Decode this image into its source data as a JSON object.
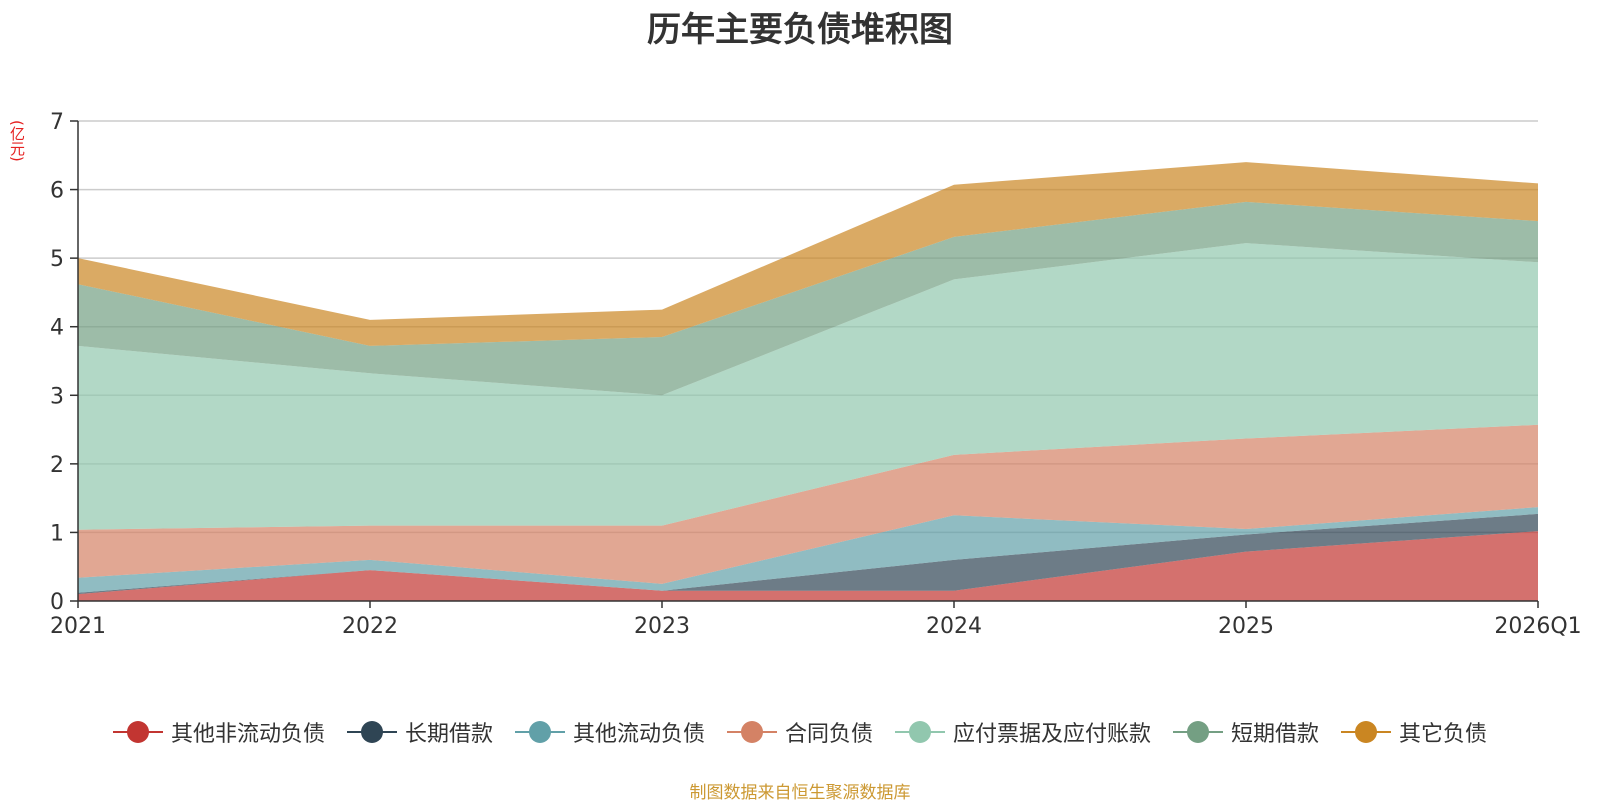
{
  "chart_data": {
    "type": "area",
    "title": "历年主要负债堆积图",
    "ylabel": "(亿元)",
    "xlabel": "",
    "ylim": [
      0,
      7
    ],
    "yticks": [
      "0",
      "1",
      "2",
      "3",
      "4",
      "5",
      "6",
      "7"
    ],
    "categories": [
      "2021",
      "2022",
      "2023",
      "2024",
      "2025",
      "2026Q1"
    ],
    "stacked": true,
    "grid": true,
    "legend_position": "bottom",
    "series": [
      {
        "name": "其他非流动负债",
        "color": "#c23531",
        "values": [
          0.1,
          0.45,
          0.15,
          0.15,
          0.72,
          1.02
        ]
      },
      {
        "name": "长期借款",
        "color": "#2f4554",
        "values": [
          0.02,
          0.0,
          0.0,
          0.45,
          0.25,
          0.25
        ]
      },
      {
        "name": "其他流动负债",
        "color": "#61a0a8",
        "values": [
          0.22,
          0.15,
          0.1,
          0.65,
          0.08,
          0.1
        ]
      },
      {
        "name": "合同负债",
        "color": "#d48265",
        "values": [
          0.7,
          0.5,
          0.85,
          0.88,
          1.32,
          1.2
        ]
      },
      {
        "name": "应付票据及应付账款",
        "color": "#91c7ae",
        "values": [
          2.68,
          2.22,
          1.9,
          2.56,
          2.85,
          2.37
        ]
      },
      {
        "name": "短期借款",
        "color": "#749f83",
        "values": [
          0.9,
          0.4,
          0.85,
          0.62,
          0.6,
          0.6
        ]
      },
      {
        "name": "其它负债",
        "color": "#ca8622",
        "values": [
          0.38,
          0.38,
          0.4,
          0.76,
          0.58,
          0.55
        ]
      }
    ],
    "source": "制图数据来自恒生聚源数据库"
  }
}
